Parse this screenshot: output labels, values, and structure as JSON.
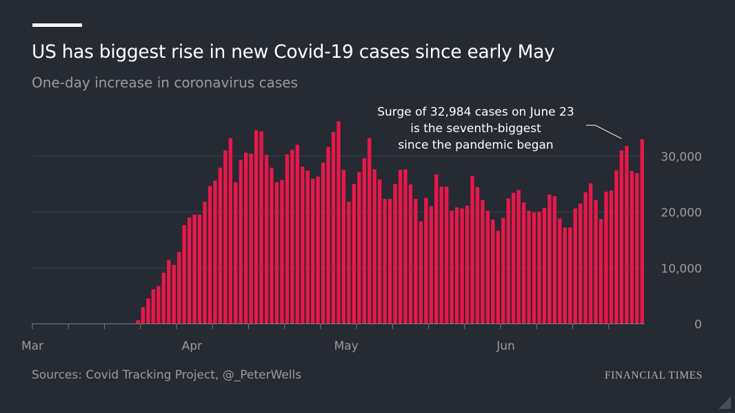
{
  "header": {
    "title": "US has biggest rise in new Covid-19 cases since early May",
    "subtitle": "One-day increase in coronavirus cases"
  },
  "footer": {
    "source": "Sources: Covid Tracking Project, @_PeterWells",
    "brand": "FINANCIAL TIMES"
  },
  "colors": {
    "background": "#262a33",
    "bar": "#e8174a",
    "grid": "#3d414a",
    "text": "#ffffff",
    "muted": "#9a9ca1"
  },
  "chart_data": {
    "type": "bar",
    "title": "US has biggest rise in new Covid-19 cases since early May",
    "subtitle": "One-day increase in coronavirus cases",
    "xlabel": "",
    "ylabel": "",
    "start_date": "2020-03-01",
    "end_date": "2020-06-23",
    "ylim": [
      0,
      35000
    ],
    "yticks": [
      0,
      10000,
      20000,
      30000
    ],
    "ytick_labels": [
      "0",
      "10,000",
      "20,000",
      "30,000"
    ],
    "y_axis_position": "right",
    "grid": true,
    "xtick_labels": [
      {
        "date": "2020-03-01",
        "label": "Mar"
      },
      {
        "date": "2020-04-01",
        "label": "Apr"
      },
      {
        "date": "2020-05-01",
        "label": "May"
      },
      {
        "date": "2020-06-01",
        "label": "Jun"
      }
    ],
    "values": [
      0,
      0,
      0,
      0,
      0,
      0,
      0,
      0,
      0,
      0,
      0,
      0,
      0,
      0,
      0,
      0,
      0,
      0,
      0,
      0,
      600,
      2900,
      4500,
      6100,
      6700,
      9100,
      11400,
      10500,
      12800,
      17600,
      19000,
      19500,
      19500,
      21800,
      24600,
      25600,
      27900,
      31000,
      33200,
      25300,
      29300,
      30600,
      30400,
      34600,
      34400,
      30200,
      27900,
      25300,
      25700,
      30300,
      31100,
      32000,
      28100,
      27400,
      25900,
      26300,
      28800,
      31600,
      34300,
      36200,
      27500,
      21800,
      25000,
      27100,
      29600,
      33200,
      27600,
      25800,
      22300,
      22300,
      25000,
      27500,
      27600,
      24900,
      22300,
      18300,
      22500,
      21000,
      26700,
      24500,
      24500,
      20200,
      20800,
      20600,
      21100,
      26400,
      24400,
      22100,
      20200,
      18600,
      16600,
      18900,
      22400,
      23400,
      23900,
      21700,
      20200,
      19900,
      20000,
      20700,
      23100,
      22800,
      18800,
      17200,
      17200,
      20600,
      21500,
      23500,
      25100,
      22100,
      18700,
      23600,
      23800,
      27400,
      31000,
      31800,
      27300,
      26900,
      32984
    ],
    "annotation": {
      "lines": [
        "Surge of 32,984 cases on June 23",
        "is the seventh-biggest",
        "since the pandemic began"
      ],
      "date": "2020-06-23",
      "value": 32984
    }
  }
}
